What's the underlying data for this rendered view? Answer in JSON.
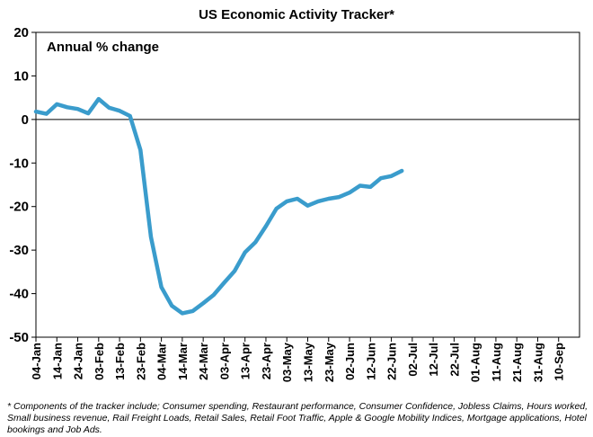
{
  "chart_data": {
    "type": "line",
    "title": "US Economic Activity Tracker*",
    "ylabel": "Annual % change",
    "xlabel": "",
    "ylim": [
      -50,
      20
    ],
    "yticks": [
      20,
      10,
      0,
      -10,
      -20,
      -30,
      -40,
      -50
    ],
    "xticks": [
      "04-Jan",
      "14-Jan",
      "24-Jan",
      "03-Feb",
      "13-Feb",
      "23-Feb",
      "04-Mar",
      "14-Mar",
      "24-Mar",
      "03-Apr",
      "13-Apr",
      "23-Apr",
      "03-May",
      "13-May",
      "23-May",
      "02-Jun",
      "12-Jun",
      "22-Jun",
      "02-Jul",
      "12-Jul",
      "22-Jul",
      "01-Aug",
      "11-Aug",
      "21-Aug",
      "31-Aug",
      "10-Sep"
    ],
    "series": [
      {
        "name": "US Economic Activity Tracker",
        "color": "#3a9ccc",
        "x_days": [
          0,
          5,
          10,
          15,
          20,
          25,
          30,
          35,
          40,
          45,
          50,
          55,
          60,
          65,
          70,
          75,
          80,
          85,
          90,
          95,
          100,
          105,
          110,
          115,
          120,
          125,
          130,
          135,
          140,
          145,
          150,
          155,
          160,
          165,
          170,
          175,
          180,
          185,
          190,
          195,
          200,
          205,
          210,
          215,
          220,
          225,
          230,
          235,
          240
        ],
        "values": [
          1.8,
          1.3,
          3.5,
          2.8,
          2.4,
          1.4,
          4.7,
          2.7,
          2.0,
          0.8,
          -7.0,
          -27.0,
          -38.5,
          -42.8,
          -44.5,
          -44.0,
          -42.2,
          -40.3,
          -37.5,
          -34.8,
          -30.5,
          -28.2,
          -24.5,
          -20.5,
          -18.8,
          -18.2,
          -19.8,
          -18.8,
          -18.2,
          -17.8,
          -16.8,
          -15.2,
          -15.5,
          -13.5,
          -13.0,
          -11.8,
          null,
          null,
          null,
          null,
          null,
          null,
          null,
          null,
          null,
          null,
          null,
          null,
          null
        ]
      }
    ]
  },
  "footnote": "* Components of the tracker include; Consumer spending, Restaurant performance, Consumer Confidence, Jobless Claims, Hours worked, Small business revenue, Rail Freight Loads, Retail Sales, Retail Foot Traffic, Apple & Google Mobility Indices, Mortgage applications, Hotel bookings and Job Ads."
}
